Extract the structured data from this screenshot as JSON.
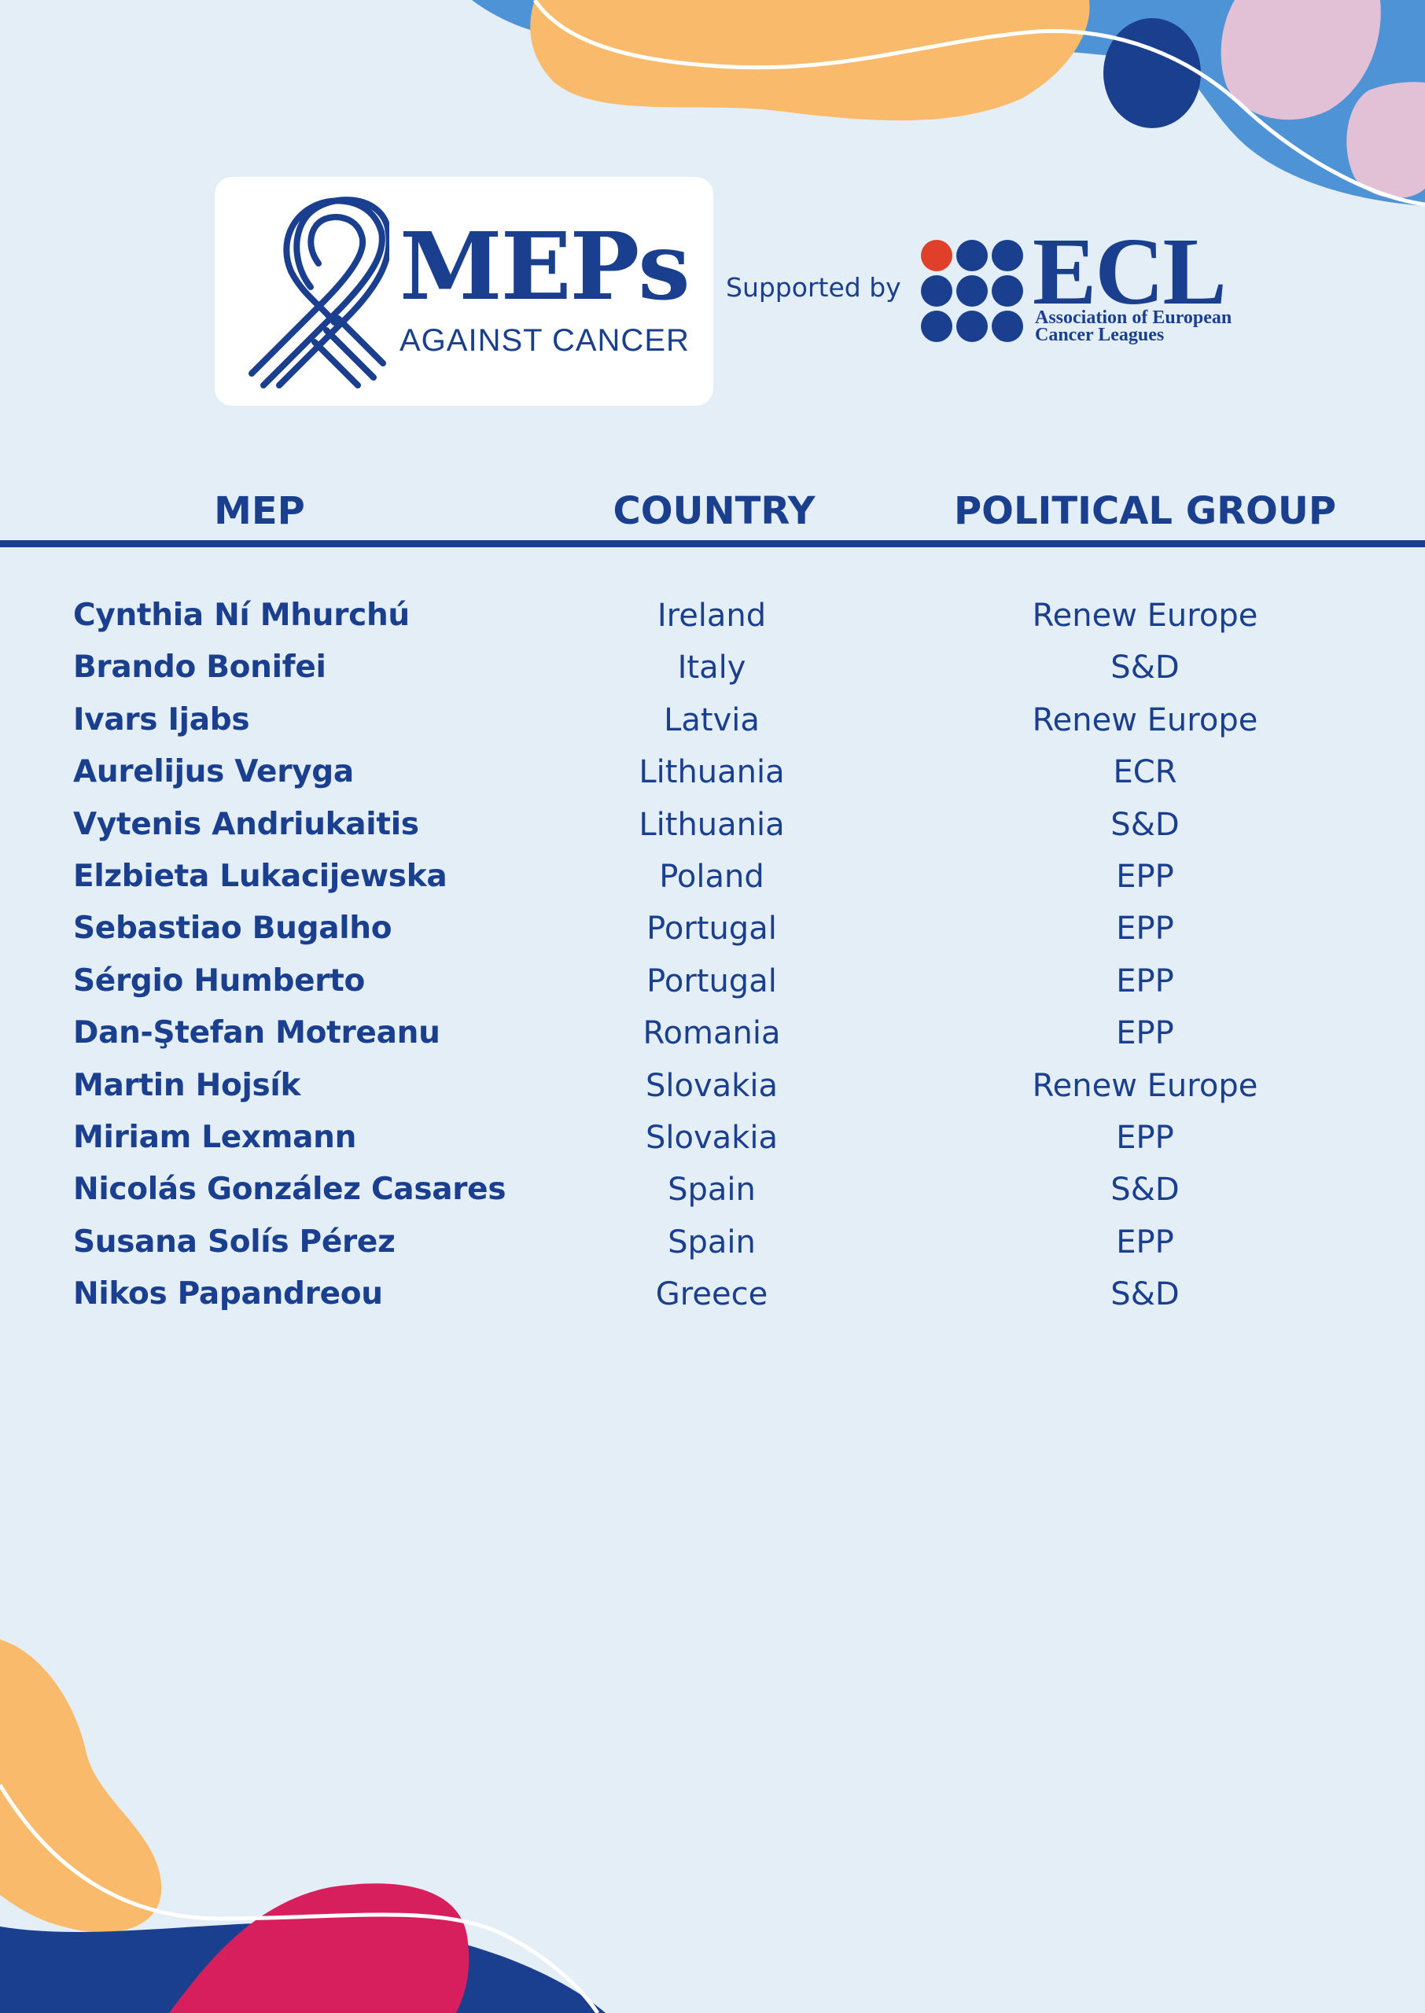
{
  "colors": {
    "background": "#e3eef7",
    "brand_blue": "#1b3f8f",
    "accent_red": "#e0402a",
    "orange": "#f9bb6b",
    "light_blue": "#4d93d6",
    "pink": "#e2c0d6",
    "magenta": "#d81f5e"
  },
  "header": {
    "meps_logo_icon": "ribbon-icon",
    "meps_title": "MEPs",
    "meps_subtitle": "AGAINST CANCER",
    "supported_by": "Supported by",
    "ecl_logo_icon": "dot-grid-icon",
    "ecl_title": "ECL",
    "ecl_subtitle_line1": "Association of European",
    "ecl_subtitle_line2": "Cancer Leagues"
  },
  "table": {
    "columns": [
      "MEP",
      "COUNTRY",
      "POLITICAL GROUP"
    ],
    "rows": [
      {
        "mep": "Cynthia Ní Mhurchú",
        "country": "Ireland",
        "group": "Renew Europe"
      },
      {
        "mep": "Brando Bonifei",
        "country": "Italy",
        "group": "S&D"
      },
      {
        "mep": "Ivars Ijabs",
        "country": "Latvia",
        "group": "Renew Europe"
      },
      {
        "mep": "Aurelijus Veryga",
        "country": "Lithuania",
        "group": "ECR"
      },
      {
        "mep": "Vytenis Andriukaitis",
        "country": "Lithuania",
        "group": "S&D"
      },
      {
        "mep": "Elzbieta Lukacijewska",
        "country": "Poland",
        "group": "EPP"
      },
      {
        "mep": "Sebastiao Bugalho",
        "country": "Portugal",
        "group": "EPP"
      },
      {
        "mep": "Sérgio Humberto",
        "country": "Portugal",
        "group": "EPP"
      },
      {
        "mep": "Dan-Ştefan Motreanu",
        "country": "Romania",
        "group": "EPP"
      },
      {
        "mep": "Martin Hojsík",
        "country": "Slovakia",
        "group": "Renew Europe"
      },
      {
        "mep": "Miriam Lexmann",
        "country": "Slovakia",
        "group": "EPP"
      },
      {
        "mep": "Nicolás González Casares",
        "country": "Spain",
        "group": "S&D"
      },
      {
        "mep": "Susana Solís Pérez",
        "country": "Spain",
        "group": "EPP"
      },
      {
        "mep": "Nikos Papandreou",
        "country": "Greece",
        "group": "S&D"
      }
    ]
  }
}
